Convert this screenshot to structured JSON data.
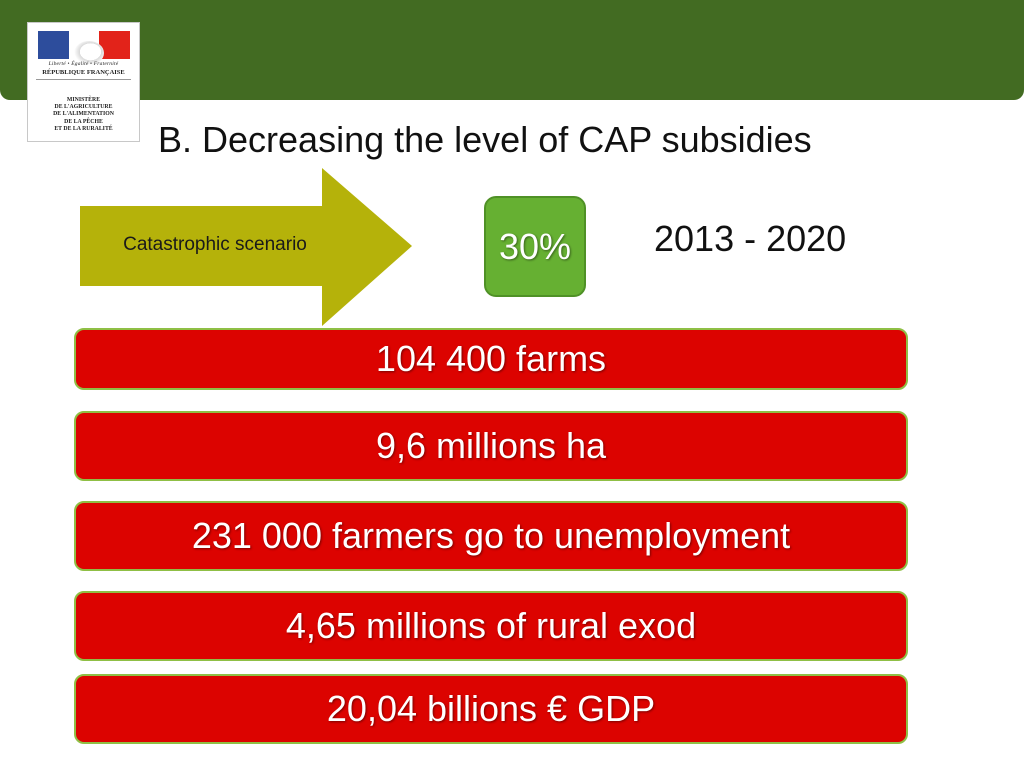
{
  "logo": {
    "motto": "Liberté • Égalité • Fraternité",
    "republic": "RÉPUBLIQUE FRANÇAISE",
    "ministry_lines": [
      "MINISTÈRE",
      "DE L'AGRICULTURE",
      "DE L'ALIMENTATION",
      "DE LA PÊCHE",
      "ET DE LA RURALITÉ"
    ]
  },
  "slide": {
    "title": "B. Decreasing the level of CAP subsidies",
    "scenario_label": "Catastrophic scenario",
    "reduction": "30%",
    "period": "2013 - 2020",
    "stats": [
      "104 400 farms",
      "9,6 millions ha",
      "231 000 farmers go to unemployment",
      "4,65 millions of rural exod",
      "20,04 billions € GDP"
    ]
  },
  "colors": {
    "banner": "#426b22",
    "arrow": "#b5b20a",
    "percent_box": "#66b032",
    "stat_box": "#dc0300",
    "stat_border": "#8fbf45"
  }
}
